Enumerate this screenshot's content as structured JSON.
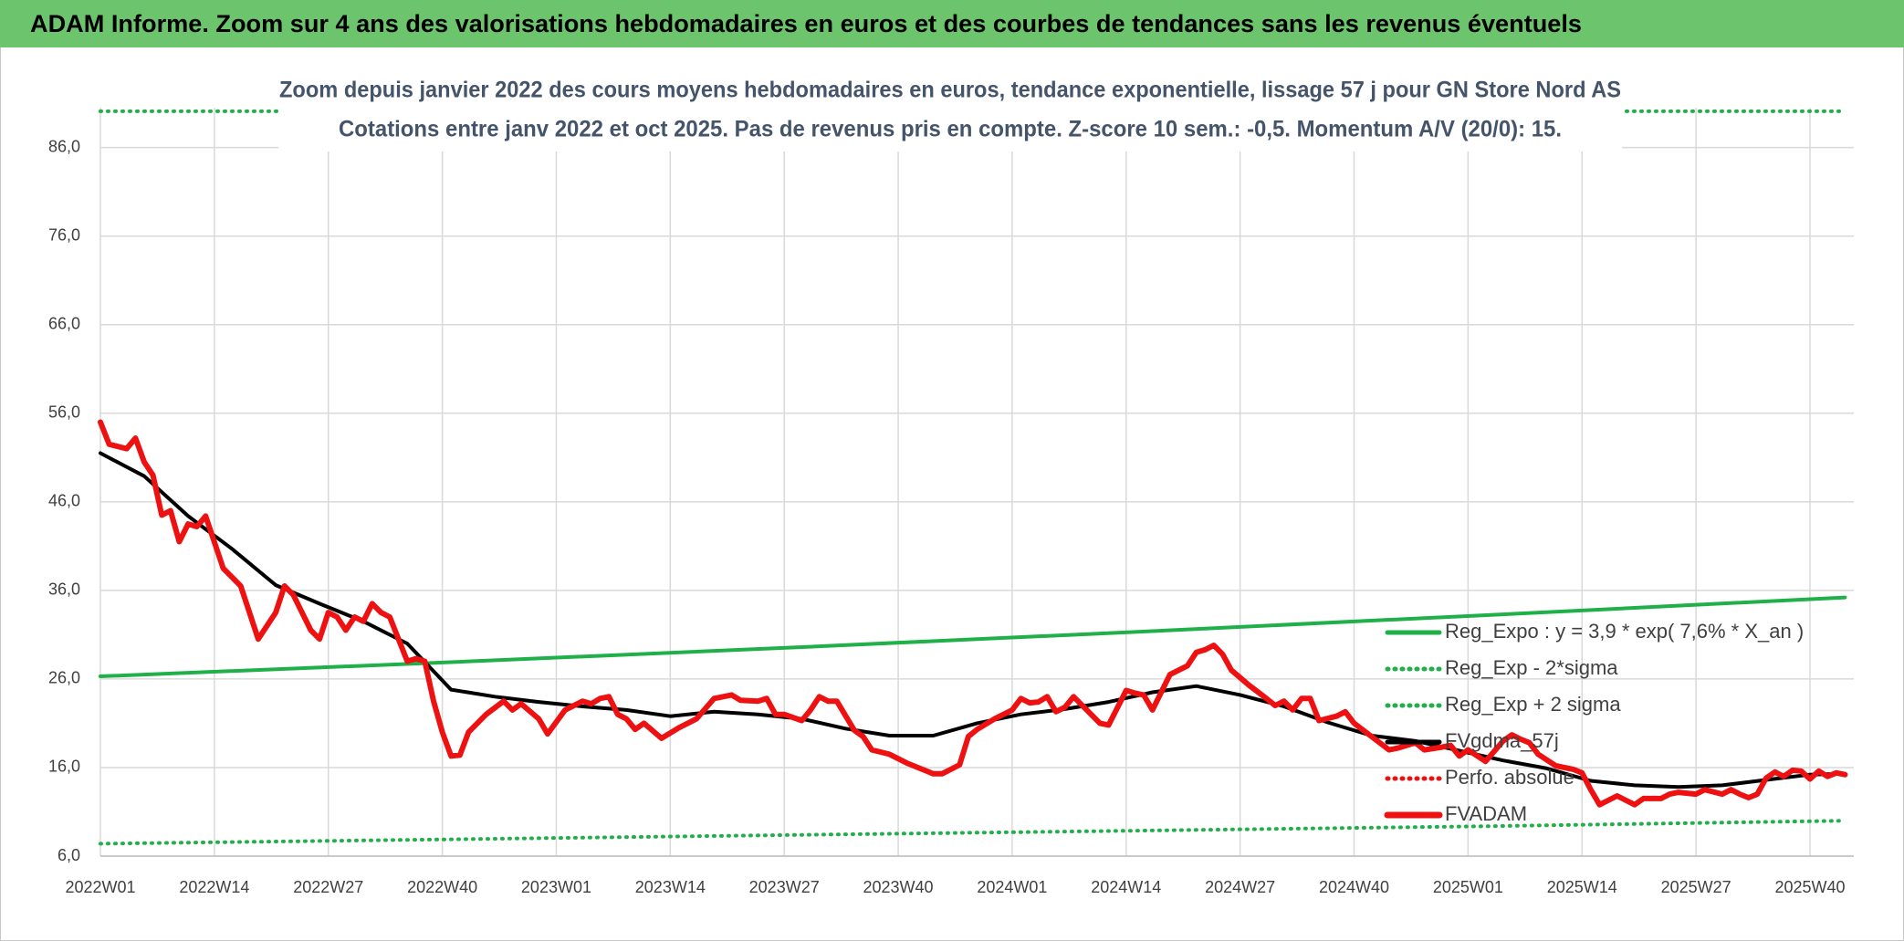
{
  "header": "ADAM Informe. Zoom sur 4 ans des valorisations hebdomadaires en euros et des courbes de tendances sans les revenus éventuels",
  "chart_data": {
    "type": "line",
    "title": [
      "Zoom depuis janvier 2022 des cours moyens hebdomadaires en euros, tendance exponentielle, lissage 57 j pour GN Store Nord AS",
      "Cotations entre janv 2022 et oct 2025. Pas de revenus pris en compte. Z-score 10 sem.: -0,5. Momentum A/V (20/0): 15."
    ],
    "xlim": [
      0,
      200
    ],
    "xticks": [
      {
        "value": 0,
        "label": "2022W01"
      },
      {
        "value": 13,
        "label": "2022W14"
      },
      {
        "value": 26,
        "label": "2022W27"
      },
      {
        "value": 39,
        "label": "2022W40"
      },
      {
        "value": 52,
        "label": "2023W01"
      },
      {
        "value": 65,
        "label": "2023W14"
      },
      {
        "value": 78,
        "label": "2023W27"
      },
      {
        "value": 91,
        "label": "2023W40"
      },
      {
        "value": 104,
        "label": "2024W01"
      },
      {
        "value": 117,
        "label": "2024W14"
      },
      {
        "value": 130,
        "label": "2024W27"
      },
      {
        "value": 143,
        "label": "2024W40"
      },
      {
        "value": 156,
        "label": "2025W01"
      },
      {
        "value": 169,
        "label": "2025W14"
      },
      {
        "value": 182,
        "label": "2025W27"
      },
      {
        "value": 195,
        "label": "2025W40"
      }
    ],
    "ylim": [
      6,
      90.5
    ],
    "yticks": [
      {
        "value": 6,
        "label": "6,0"
      },
      {
        "value": 16,
        "label": "16,0"
      },
      {
        "value": 26,
        "label": "26,0"
      },
      {
        "value": 36,
        "label": "36,0"
      },
      {
        "value": 46,
        "label": "46,0"
      },
      {
        "value": 56,
        "label": "56,0"
      },
      {
        "value": 66,
        "label": "66,0"
      },
      {
        "value": 76,
        "label": "76,0"
      },
      {
        "value": 86,
        "label": "86,0"
      }
    ],
    "grid": true,
    "legend": "right",
    "series": [
      {
        "name": "Reg_Expo : y = 3,9 * exp( 7,6% *  X_an )",
        "color": "#1fb04a",
        "style": "solid",
        "x": [
          0,
          40,
          80,
          120,
          160,
          199
        ],
        "values": [
          26.3,
          27.9,
          29.6,
          31.4,
          33.3,
          35.2
        ]
      },
      {
        "name": "Reg_Exp - 2*sigma",
        "color": "#1fb04a",
        "style": "dotted",
        "x": [
          0,
          40,
          80,
          120,
          160,
          199
        ],
        "values": [
          7.4,
          7.9,
          8.4,
          8.9,
          9.4,
          10.0
        ]
      },
      {
        "name": "Reg_Exp + 2 sigma",
        "color": "#1fb04a",
        "style": "dotted",
        "x": [
          0,
          40,
          80,
          120,
          160,
          199
        ],
        "values": [
          90.1,
          90.1,
          90.1,
          90.1,
          90.1,
          90.1
        ]
      },
      {
        "name": "FVgdma_57j",
        "color": "#000000",
        "style": "solid",
        "x": [
          0,
          5,
          10,
          15,
          20,
          25,
          30,
          35,
          40,
          45,
          50,
          55,
          60,
          65,
          70,
          75,
          80,
          85,
          90,
          95,
          100,
          105,
          110,
          115,
          120,
          125,
          130,
          135,
          140,
          145,
          150,
          155,
          160,
          165,
          170,
          175,
          180,
          185,
          190,
          195,
          199
        ],
        "values": [
          51.5,
          48.9,
          44.4,
          40.7,
          36.6,
          34.5,
          32.5,
          30.0,
          24.8,
          24.0,
          23.4,
          22.9,
          22.5,
          21.8,
          22.3,
          22.0,
          21.5,
          20.4,
          19.6,
          19.6,
          21.0,
          22.0,
          22.6,
          23.4,
          24.5,
          25.2,
          24.2,
          22.9,
          21.1,
          19.6,
          19.0,
          17.9,
          16.8,
          15.9,
          14.5,
          14.0,
          13.8,
          14.0,
          14.6,
          15.2,
          15.3
        ]
      },
      {
        "name": "Perfo. absolue",
        "color": "#e81010",
        "style": "dotted",
        "x": [],
        "values": []
      },
      {
        "name": "FVADAM",
        "color": "#ee1111",
        "style": "thick",
        "x": [
          0,
          1,
          3,
          4,
          5,
          6,
          7,
          8,
          9,
          10,
          11,
          12,
          14,
          16,
          18,
          20,
          21,
          22,
          24,
          25,
          26,
          27,
          28,
          29,
          30,
          31,
          32,
          33,
          35,
          36,
          37,
          38,
          39,
          40,
          41,
          42,
          44,
          46,
          47,
          48,
          50,
          51,
          53,
          55,
          56,
          57,
          58,
          59,
          60,
          61,
          62,
          64,
          66,
          68,
          70,
          72,
          73,
          75,
          76,
          77,
          78,
          80,
          81,
          82,
          83,
          84,
          86,
          87,
          88,
          90,
          92,
          94,
          95,
          96,
          98,
          99,
          100,
          102,
          104,
          105,
          106,
          107,
          108,
          109,
          110,
          111,
          112,
          114,
          115,
          117,
          118,
          119,
          120,
          122,
          124,
          125,
          126,
          127,
          128,
          129,
          131,
          133,
          134,
          135,
          136,
          137,
          138,
          139,
          141,
          142,
          143,
          145,
          147,
          148,
          150,
          151,
          153,
          154,
          155,
          156,
          158,
          160,
          161,
          162,
          163,
          164,
          166,
          168,
          169,
          170,
          171,
          173,
          175,
          176,
          178,
          179,
          180,
          182,
          183,
          185,
          186,
          187,
          188,
          189,
          190,
          191,
          192,
          193,
          194,
          195,
          196,
          197,
          198,
          199
        ],
        "values": [
          55.0,
          52.5,
          52.0,
          53.2,
          50.5,
          49.0,
          44.5,
          45.0,
          41.5,
          43.5,
          43.2,
          44.4,
          38.5,
          36.5,
          30.5,
          33.5,
          36.5,
          35.5,
          31.5,
          30.5,
          33.5,
          33.0,
          31.5,
          33.0,
          32.5,
          34.5,
          33.5,
          33.0,
          28.0,
          28.3,
          28.0,
          23.5,
          20.0,
          17.3,
          17.4,
          20.0,
          22.0,
          23.5,
          22.5,
          23.2,
          21.5,
          19.8,
          22.5,
          23.5,
          23.2,
          23.8,
          24.0,
          22.0,
          21.5,
          20.3,
          21.0,
          19.3,
          20.5,
          21.5,
          23.8,
          24.2,
          23.6,
          23.5,
          23.8,
          22.0,
          22.0,
          21.3,
          22.5,
          24.0,
          23.5,
          23.5,
          20.2,
          19.5,
          18.0,
          17.5,
          16.5,
          15.7,
          15.3,
          15.3,
          16.3,
          19.5,
          20.3,
          21.5,
          22.5,
          23.8,
          23.3,
          23.4,
          24.0,
          22.3,
          22.8,
          24.0,
          23.0,
          21.0,
          20.8,
          24.7,
          24.4,
          24.2,
          22.5,
          26.5,
          27.5,
          29.0,
          29.3,
          29.8,
          28.8,
          27.0,
          25.3,
          23.8,
          23.0,
          23.5,
          22.5,
          23.8,
          23.8,
          21.3,
          21.8,
          22.3,
          21.0,
          19.5,
          18.0,
          18.2,
          18.8,
          18.0,
          18.3,
          18.5,
          17.3,
          18.0,
          16.7,
          19.0,
          19.7,
          19.2,
          18.8,
          17.5,
          16.2,
          15.8,
          15.4,
          13.5,
          11.8,
          12.8,
          11.8,
          12.5,
          12.5,
          13.0,
          13.2,
          13.0,
          13.5,
          13.0,
          13.5,
          13.0,
          12.6,
          13.0,
          14.8,
          15.5,
          15.0,
          15.7,
          15.6,
          14.7,
          15.6,
          15.0,
          15.4,
          15.2
        ]
      }
    ]
  }
}
